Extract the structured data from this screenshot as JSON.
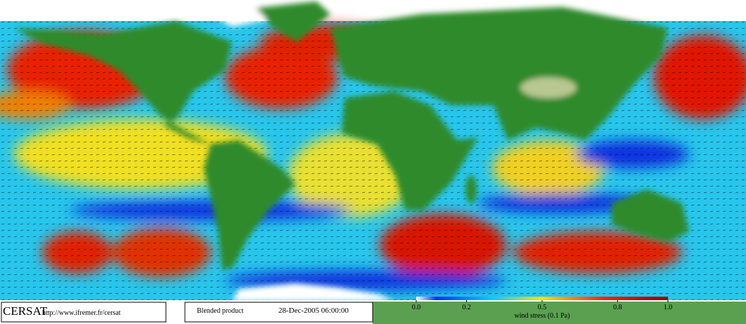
{
  "header": {
    "logo": "CERSAT",
    "url": "http://www.ifremer.fr/cersat"
  },
  "product": {
    "name": "Blended product",
    "date": "28-Dec-2005 06:00:00"
  },
  "colorbar": {
    "label": "wind stress (0.1 Pa)",
    "range": [
      0,
      1
    ],
    "ticks": [
      {
        "value": 0,
        "label": "0.0"
      },
      0.2,
      0.5,
      0.8,
      {
        "value": 1,
        "label": "1.0"
      }
    ]
  }
}
